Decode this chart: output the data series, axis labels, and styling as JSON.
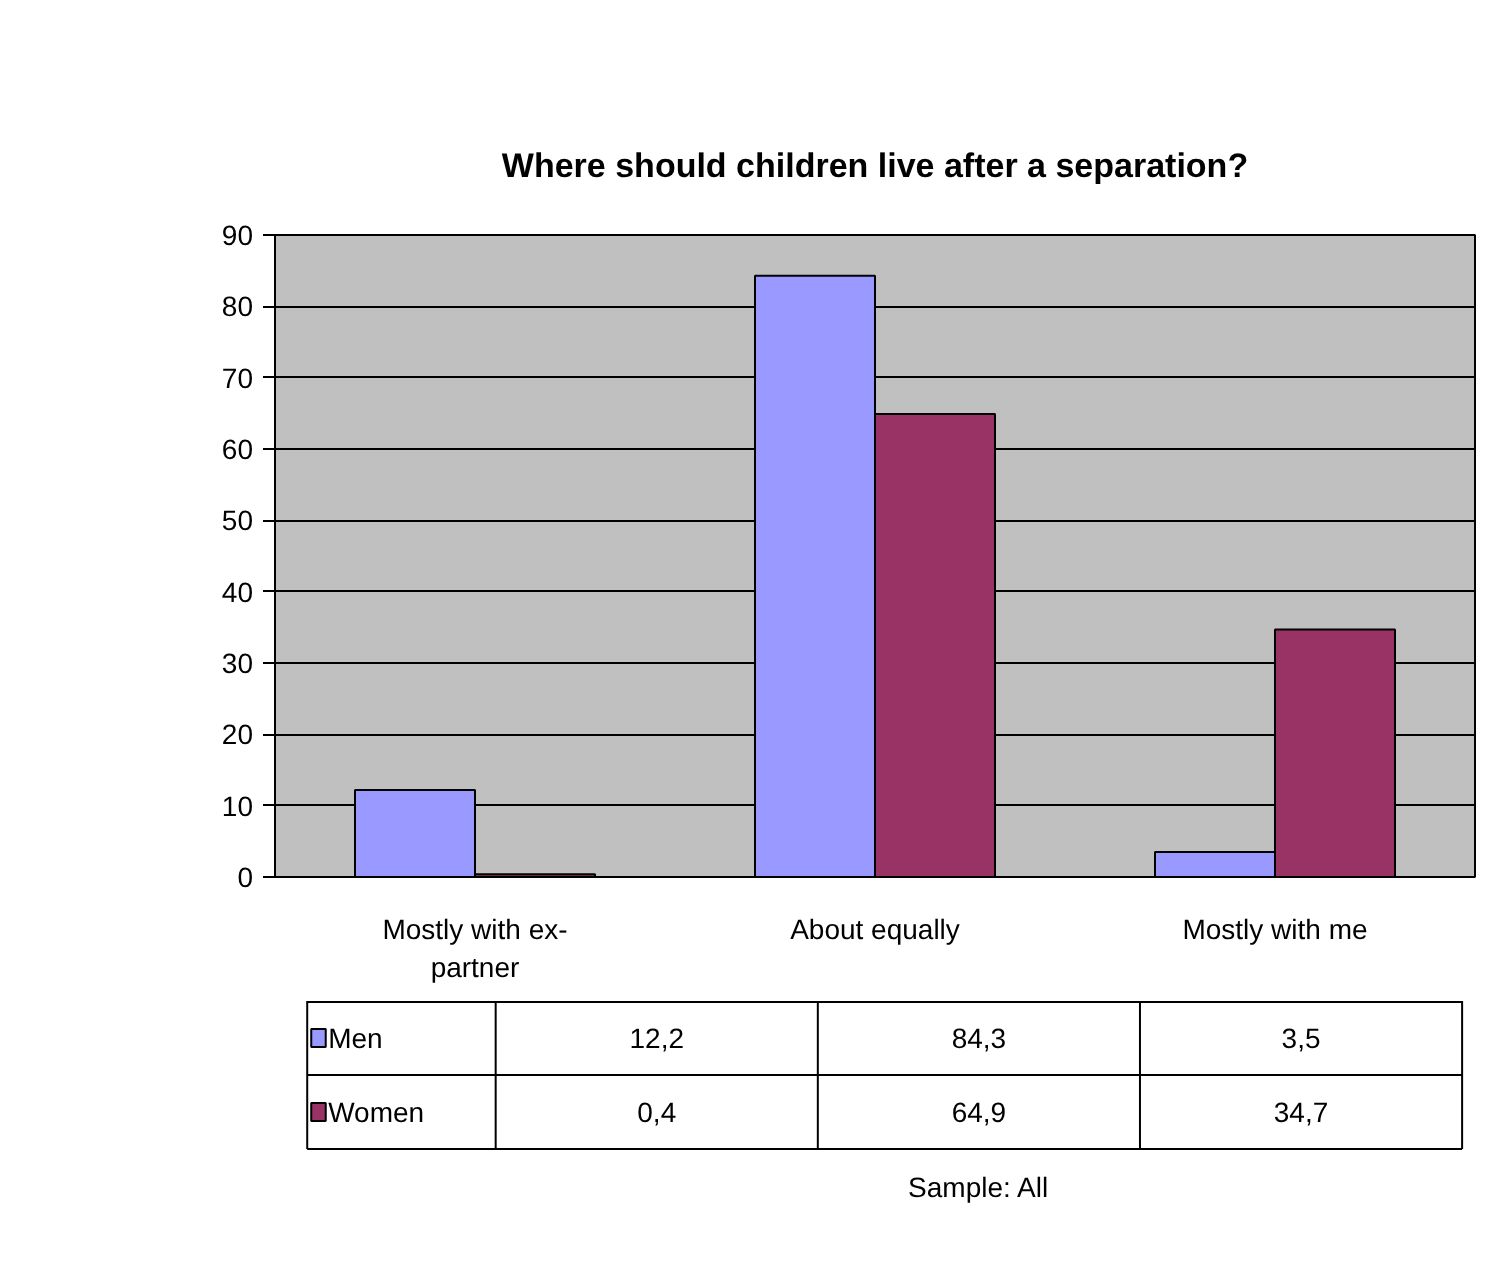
{
  "chart_data": {
    "type": "bar",
    "title": "Where should children live after a separation?",
    "categories": [
      "Mostly with ex-partner",
      "About equally",
      "Mostly with me"
    ],
    "series": [
      {
        "name": "Men",
        "color": "#9999ff",
        "values": [
          12.2,
          84.3,
          3.5
        ],
        "value_labels": [
          "12,2",
          "84,3",
          "3,5"
        ]
      },
      {
        "name": "Women",
        "color": "#993366",
        "values": [
          0.4,
          64.9,
          34.7
        ],
        "value_labels": [
          "0,4",
          "64,9",
          "34,7"
        ]
      }
    ],
    "ylim": [
      0,
      90
    ],
    "yticks": [
      0,
      10,
      20,
      30,
      40,
      50,
      60,
      70,
      80,
      90
    ],
    "grid": "y",
    "legend": "bottom",
    "annotations": [
      "Sample: All"
    ]
  }
}
